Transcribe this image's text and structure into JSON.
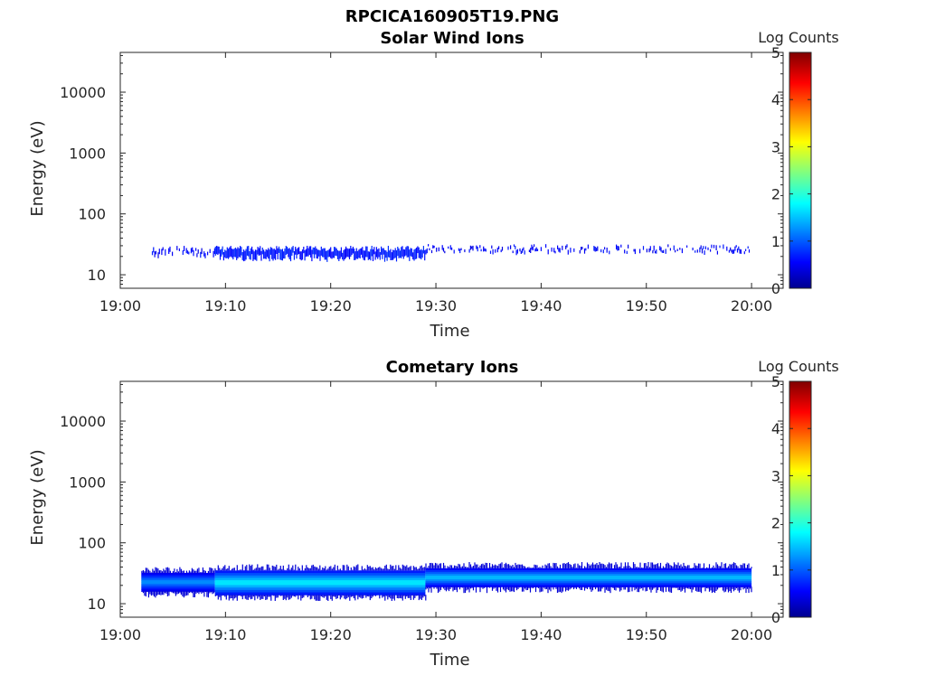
{
  "figure": {
    "title": "RPCICA160905T19.PNG"
  },
  "chart_data": [
    {
      "type": "heatmap",
      "title": "Solar Wind Ions",
      "xlabel": "Time",
      "ylabel": "Energy (eV)",
      "yscale": "log",
      "ylim": [
        6,
        45000
      ],
      "xlim": [
        "19:00",
        "20:03"
      ],
      "x_ticks": [
        "19:00",
        "19:10",
        "19:20",
        "19:30",
        "19:40",
        "19:50",
        "20:00"
      ],
      "y_ticks": [
        "10",
        "100",
        "1000",
        "10000"
      ],
      "colorbar": {
        "label": "Log Counts",
        "range": [
          0,
          5
        ],
        "ticks": [
          "0",
          "1",
          "2",
          "3",
          "4",
          "5"
        ],
        "colormap": "jet"
      },
      "bands": [
        {
          "t_start": "19:03",
          "t_end": "19:09",
          "e_low": 20,
          "e_high": 30,
          "log_counts": 0.4,
          "coverage": "sparse"
        },
        {
          "t_start": "19:09",
          "t_end": "19:29",
          "e_low": 20,
          "e_high": 30,
          "log_counts": 0.5,
          "coverage": "dense"
        },
        {
          "t_start": "19:29",
          "t_end": "20:00",
          "e_low": 23,
          "e_high": 32,
          "log_counts": 0.4,
          "coverage": "sparse"
        }
      ]
    },
    {
      "type": "heatmap",
      "title": "Cometary Ions",
      "xlabel": "Time",
      "ylabel": "Energy (eV)",
      "yscale": "log",
      "ylim": [
        6,
        45000
      ],
      "xlim": [
        "19:00",
        "20:03"
      ],
      "x_ticks": [
        "19:00",
        "19:10",
        "19:20",
        "19:30",
        "19:40",
        "19:50",
        "20:00"
      ],
      "y_ticks": [
        "10",
        "100",
        "1000",
        "10000"
      ],
      "colorbar": {
        "label": "Log Counts",
        "range": [
          0,
          5
        ],
        "ticks": [
          "0",
          "1",
          "2",
          "3",
          "4",
          "5"
        ],
        "colormap": "jet"
      },
      "bands": [
        {
          "t_start": "19:02",
          "t_end": "19:09",
          "e_low": 16,
          "e_high": 32,
          "log_counts": 1.1
        },
        {
          "t_start": "19:09",
          "t_end": "19:29",
          "e_low": 14,
          "e_high": 35,
          "log_counts": 1.5
        },
        {
          "t_start": "19:29",
          "t_end": "20:00",
          "e_low": 19,
          "e_high": 38,
          "log_counts": 1.3
        }
      ]
    }
  ]
}
